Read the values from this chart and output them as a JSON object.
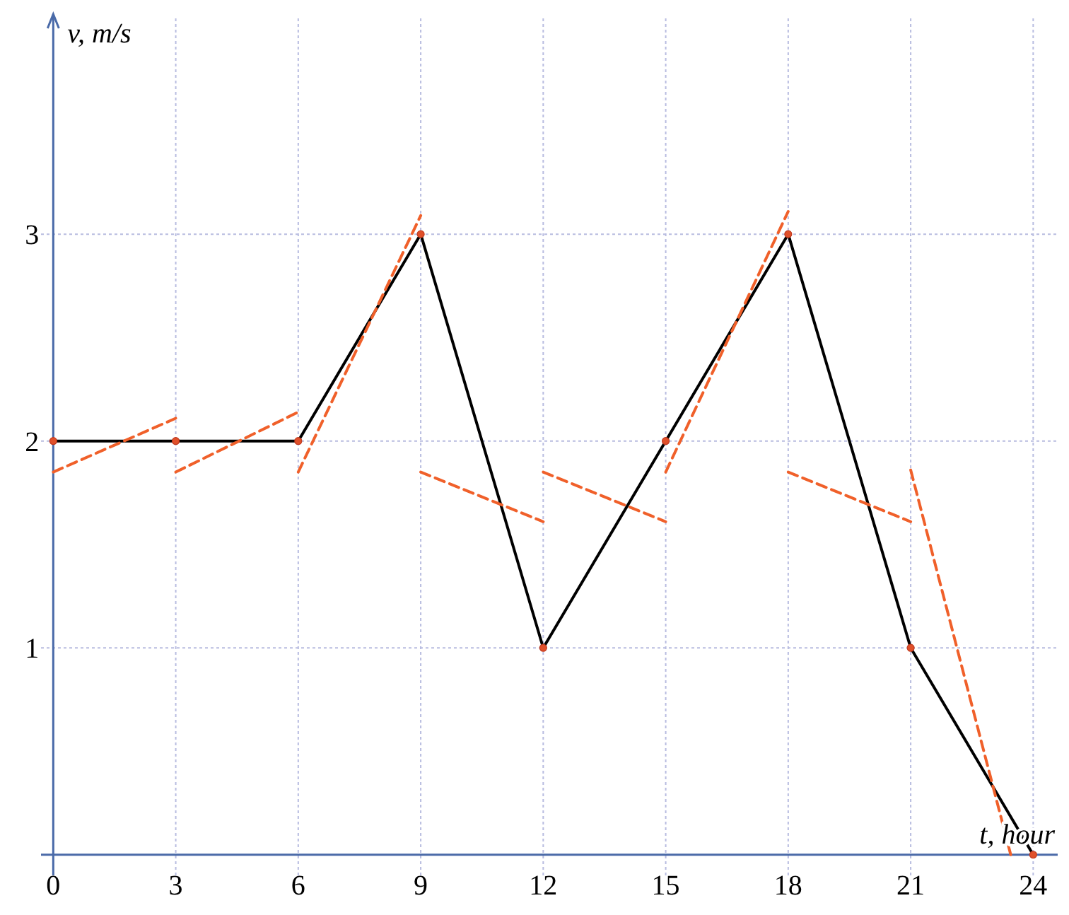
{
  "chart_data": {
    "type": "line",
    "xlabel": "t, hour",
    "ylabel": "v, m/s",
    "x": [
      0,
      3,
      6,
      9,
      12,
      15,
      18,
      21,
      24
    ],
    "xlim": [
      -0.3,
      24.6
    ],
    "ylim": [
      -0.1,
      4.05
    ],
    "xticks": [
      0,
      3,
      6,
      9,
      12,
      15,
      18,
      21,
      24
    ],
    "yticks": [
      1,
      2,
      3
    ],
    "grid": true,
    "marker": "circle",
    "series": [
      {
        "color": "#000000",
        "values": [
          2,
          2,
          2,
          3,
          1,
          2,
          3,
          1,
          0
        ]
      },
      {
        "type": "line",
        "line_style": "dashed",
        "marker": "none",
        "color": "#f0602a",
        "x": [
          0,
          3
        ],
        "values": [
          1.85,
          2.11
        ]
      },
      {
        "type": "line",
        "line_style": "dashed",
        "marker": "none",
        "color": "#f0602a",
        "x": [
          3,
          6
        ],
        "values": [
          1.85,
          2.14
        ]
      },
      {
        "type": "line",
        "line_style": "dashed",
        "marker": "none",
        "color": "#f0602a",
        "x": [
          6,
          9
        ],
        "values": [
          1.85,
          3.09
        ]
      },
      {
        "type": "line",
        "line_style": "dashed",
        "marker": "none",
        "color": "#f0602a",
        "x": [
          9,
          12
        ],
        "values": [
          1.85,
          1.61
        ]
      },
      {
        "type": "line",
        "line_style": "dashed",
        "marker": "none",
        "color": "#f0602a",
        "x": [
          12,
          15
        ],
        "values": [
          1.85,
          1.61
        ]
      },
      {
        "type": "line",
        "line_style": "dashed",
        "marker": "none",
        "color": "#f0602a",
        "x": [
          15,
          18
        ],
        "values": [
          1.85,
          3.11
        ]
      },
      {
        "type": "line",
        "line_style": "dashed",
        "marker": "none",
        "color": "#f0602a",
        "x": [
          18,
          21
        ],
        "values": [
          1.85,
          1.61
        ]
      },
      {
        "type": "line",
        "line_style": "dashed",
        "marker": "none",
        "color": "#f0602a",
        "x": [
          21,
          23.45
        ],
        "values": [
          1.86,
          0
        ]
      }
    ]
  }
}
